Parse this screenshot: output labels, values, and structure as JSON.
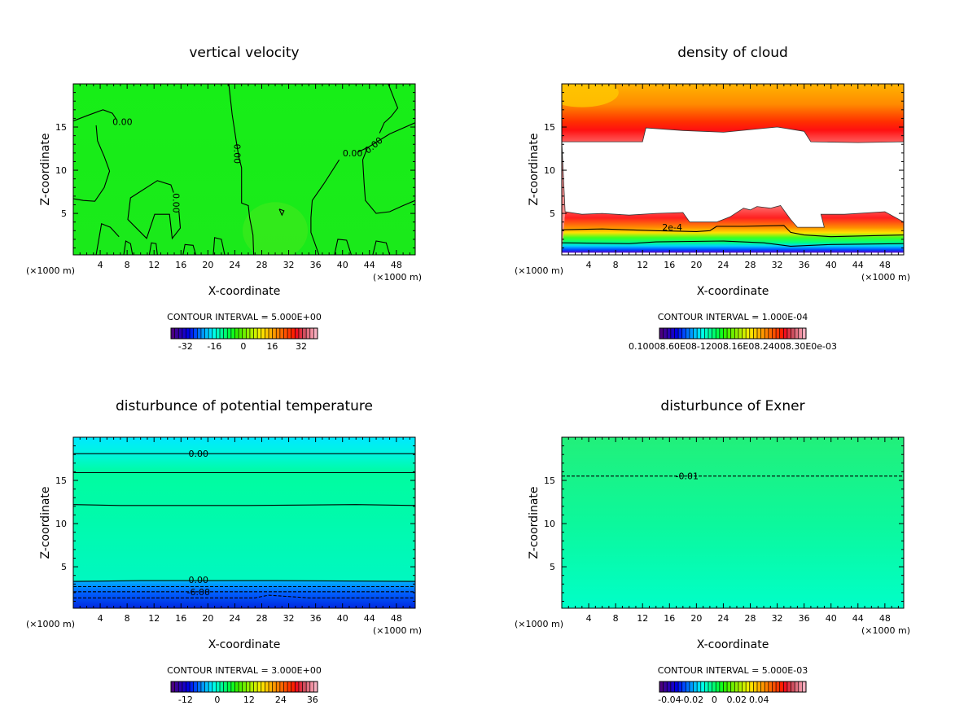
{
  "chart_data": [
    {
      "type": "heatmap",
      "title": "vertical velocity",
      "xlabel": "X-coordinate",
      "ylabel": "Z-coordinate",
      "x_unit_left": "(×1000 m)",
      "x_unit_right": "(×1000 m)",
      "xlim": [
        0,
        50.8
      ],
      "ylim": [
        0.2,
        20
      ],
      "xticks": [
        4,
        8,
        12,
        16,
        20,
        24,
        28,
        32,
        36,
        40,
        44,
        48
      ],
      "yticks": [
        5,
        10,
        15
      ],
      "contour_interval": "CONTOUR INTERVAL = 5.000E+00",
      "colorbar": {
        "range": [
          -40,
          41
        ],
        "labels": [
          "-32",
          "-16",
          "0",
          "16",
          "32"
        ],
        "values": [
          -32,
          -16,
          0,
          16,
          32
        ]
      },
      "background": {
        "bands": [
          [
            20,
            "#17ee17"
          ],
          [
            0.2,
            "#1aea1a"
          ]
        ]
      },
      "contours": [
        {
          "value": "0.00",
          "label_at": [
            7.3,
            15.6
          ],
          "dashed": false,
          "points": [
            [
              0,
              15.7
            ],
            [
              2,
              16.3
            ],
            [
              4.4,
              17.0
            ],
            [
              5.8,
              16.6
            ],
            [
              6.4,
              15.9
            ]
          ]
        },
        {
          "value": "",
          "dashed": false,
          "points": [
            [
              3.4,
              15.2
            ],
            [
              3.6,
              13.4
            ],
            [
              4.6,
              11.6
            ],
            [
              5.4,
              9.9
            ],
            [
              4.6,
              8.0
            ],
            [
              3.2,
              6.4
            ],
            [
              1.5,
              6.5
            ],
            [
              0,
              6.7
            ]
          ]
        },
        {
          "value": "0.00",
          "label_at": [
            24.4,
            11.9
          ],
          "label_rot": 90,
          "dashed": false,
          "points": [
            [
              23.1,
              20
            ],
            [
              23.6,
              16.5
            ],
            [
              24.2,
              13.4
            ],
            [
              24.6,
              11.5
            ],
            [
              25,
              10.3
            ],
            [
              25,
              6.2
            ],
            [
              26,
              5.9
            ],
            [
              26.2,
              4.5
            ],
            [
              26.7,
              2.5
            ],
            [
              26.8,
              0.2
            ]
          ]
        },
        {
          "value": "0.00",
          "label_at": [
            41.5,
            12.0
          ],
          "dashed": false,
          "points": [
            [
              50.8,
              15.5
            ],
            [
              47,
              14.2
            ],
            [
              43.9,
              12.7
            ],
            [
              42.3,
              12.1
            ]
          ]
        },
        {
          "value": "",
          "dashed": false,
          "points": [
            [
              39.5,
              11.2
            ],
            [
              37.2,
              8.4
            ],
            [
              35.5,
              6.5
            ],
            [
              35.3,
              4.5
            ],
            [
              35.3,
              2.8
            ],
            [
              36.5,
              0.2
            ]
          ]
        },
        {
          "value": "0.00",
          "label_at": [
            44.6,
            12.9
          ],
          "label_rot": -40,
          "dashed": false,
          "points": [
            [
              46.8,
              20
            ],
            [
              48.2,
              17.2
            ],
            [
              47.2,
              16.2
            ],
            [
              46.2,
              15.5
            ],
            [
              45.5,
              14.3
            ]
          ]
        },
        {
          "value": "",
          "dashed": false,
          "points": [
            [
              43.7,
              12.6
            ],
            [
              43,
              11.2
            ],
            [
              43.2,
              8.5
            ],
            [
              43.4,
              6.5
            ],
            [
              45,
              5
            ],
            [
              47,
              5.2
            ],
            [
              49,
              5.9
            ],
            [
              50.8,
              6.5
            ]
          ]
        },
        {
          "value": "0.00",
          "label_at": [
            15.3,
            6.2
          ],
          "label_rot": 90,
          "dashed": false,
          "points": [
            [
              15.7,
              5.2
            ],
            [
              15.9,
              3.3
            ],
            [
              14.7,
              2.1
            ],
            [
              14.3,
              4.9
            ],
            [
              12.1,
              4.9
            ],
            [
              10.9,
              2.1
            ],
            [
              8.1,
              4.3
            ],
            [
              8.5,
              6.8
            ],
            [
              12.5,
              8.8
            ],
            [
              14.5,
              8.3
            ],
            [
              14.9,
              7.4
            ]
          ]
        },
        {
          "value": "",
          "dashed": false,
          "points": [
            [
              3.4,
              0.2
            ],
            [
              4.2,
              3.8
            ],
            [
              5.5,
              3.4
            ],
            [
              6.8,
              2.3
            ]
          ]
        },
        {
          "value": "",
          "dashed": false,
          "points": [
            [
              7.5,
              0.2
            ],
            [
              7.8,
              1.8
            ],
            [
              8.5,
              1.5
            ],
            [
              8.8,
              0.2
            ]
          ]
        },
        {
          "value": "",
          "dashed": false,
          "points": [
            [
              20.8,
              0.2
            ],
            [
              21,
              2.2
            ],
            [
              22,
              2.0
            ],
            [
              22.5,
              0.2
            ]
          ]
        },
        {
          "value": "",
          "dashed": false,
          "points": [
            [
              16.3,
              0.2
            ],
            [
              16.6,
              1.4
            ],
            [
              17.8,
              1.3
            ],
            [
              18.2,
              0.2
            ]
          ]
        },
        {
          "value": "",
          "dashed": false,
          "points": [
            [
              38.8,
              0.2
            ],
            [
              39.3,
              2.0
            ],
            [
              40.6,
              1.9
            ],
            [
              41.3,
              0.2
            ]
          ]
        },
        {
          "value": "",
          "dashed": false,
          "points": [
            [
              44.5,
              0.2
            ],
            [
              45,
              1.8
            ],
            [
              46.5,
              1.6
            ],
            [
              47,
              0.2
            ]
          ]
        },
        {
          "value": "",
          "dashed": false,
          "points": [
            [
              30.6,
              5.5
            ],
            [
              31,
              4.8
            ],
            [
              31.3,
              5.3
            ],
            [
              30.6,
              5.5
            ]
          ]
        },
        {
          "value": "",
          "dashed": false,
          "points": [
            [
              11.3,
              0.2
            ],
            [
              11.6,
              1.6
            ],
            [
              12.3,
              1.5
            ],
            [
              12.5,
              0.2
            ]
          ]
        }
      ]
    },
    {
      "type": "heatmap",
      "title": "density of cloud",
      "xlabel": "X-coordinate",
      "ylabel": "Z-coordinate",
      "x_unit_left": "(×1000 m)",
      "x_unit_right": "(×1000 m)",
      "xlim": [
        0,
        50.8
      ],
      "ylim": [
        0.2,
        20
      ],
      "xticks": [
        4,
        8,
        12,
        16,
        20,
        24,
        28,
        32,
        36,
        40,
        44,
        48
      ],
      "yticks": [
        5,
        10,
        15
      ],
      "contour_interval": "CONTOUR INTERVAL = 1.000E-04",
      "colorbar": {
        "range": [
          0,
          1
        ],
        "labels": [
          "0.10008.60E08-12008.16E08.24008.30E0e-03"
        ],
        "values": [
          0.5
        ]
      },
      "cloud_upper_boundary": [
        [
          0,
          13.3
        ],
        [
          12,
          13.3
        ],
        [
          12.5,
          14.9
        ],
        [
          18,
          14.6
        ],
        [
          24,
          14.4
        ],
        [
          32,
          15.0
        ],
        [
          36,
          14.5
        ],
        [
          37,
          13.3
        ],
        [
          44,
          13.2
        ],
        [
          50.8,
          13.3
        ]
      ],
      "cloud_lower_boundary": [
        [
          0.5,
          5.2
        ],
        [
          3,
          4.9
        ],
        [
          6,
          5.0
        ],
        [
          10,
          4.8
        ],
        [
          14,
          5.0
        ],
        [
          18,
          5.1
        ],
        [
          19,
          4.0
        ],
        [
          23,
          4.0
        ],
        [
          25,
          4.6
        ],
        [
          27,
          5.6
        ],
        [
          28,
          5.4
        ],
        [
          29,
          5.8
        ],
        [
          31,
          5.6
        ],
        [
          32.5,
          5.9
        ],
        [
          34,
          4.3
        ],
        [
          35,
          3.4
        ],
        [
          39,
          3.4
        ],
        [
          38.5,
          4.9
        ],
        [
          42,
          4.9
        ],
        [
          48,
          5.2
        ],
        [
          50.8,
          4.0
        ]
      ],
      "contours": [
        {
          "value": "2e-4",
          "label_at": [
            16.4,
            3.4
          ],
          "dashed": false,
          "points": [
            [
              0,
              3.1
            ],
            [
              6,
              3.2
            ],
            [
              14,
              3.0
            ],
            [
              20,
              2.9
            ],
            [
              22,
              3.0
            ],
            [
              23,
              3.5
            ],
            [
              27,
              3.5
            ],
            [
              33,
              3.6
            ],
            [
              34,
              2.8
            ],
            [
              36,
              2.5
            ],
            [
              40,
              2.3
            ],
            [
              50.8,
              2.5
            ]
          ]
        },
        {
          "value": "",
          "dashed": false,
          "points": [
            [
              0,
              1.6
            ],
            [
              10,
              1.5
            ],
            [
              14,
              1.7
            ],
            [
              24,
              1.8
            ],
            [
              30,
              1.6
            ],
            [
              34,
              1.2
            ],
            [
              40,
              1.4
            ],
            [
              50.8,
              1.5
            ]
          ]
        }
      ]
    },
    {
      "type": "heatmap",
      "title": "disturbunce of potential temperature",
      "xlabel": "X-coordinate",
      "ylabel": "Z-coordinate",
      "x_unit_left": "(×1000 m)",
      "x_unit_right": "(×1000 m)",
      "xlim": [
        0,
        50.8
      ],
      "ylim": [
        0.2,
        20
      ],
      "xticks": [
        4,
        8,
        12,
        16,
        20,
        24,
        28,
        32,
        36,
        40,
        44,
        48
      ],
      "yticks": [
        5,
        10,
        15
      ],
      "contour_interval": "CONTOUR INTERVAL = 3.000E+00",
      "colorbar": {
        "range": [
          -17.5,
          37.9
        ],
        "labels": [
          "-12",
          "0",
          "12",
          "24",
          "36"
        ],
        "values": [
          -12,
          0,
          12,
          24,
          36
        ]
      },
      "background": {
        "bands": [
          [
            20,
            "#00e8ff"
          ],
          [
            18.1,
            "#00f5e0"
          ],
          [
            15.9,
            "#00fca0"
          ],
          [
            12.1,
            "#00fba8"
          ],
          [
            3.4,
            "#00f8c0"
          ],
          [
            3.3,
            "#00b0ff"
          ],
          [
            2.0,
            "#0060ff"
          ],
          [
            0.2,
            "#0028e0"
          ]
        ]
      },
      "contours": [
        {
          "value": "0.00",
          "label_at": [
            18.6,
            18.1
          ],
          "dashed": false,
          "points": [
            [
              0,
              18.1
            ],
            [
              50.8,
              18.1
            ]
          ]
        },
        {
          "value": "",
          "dashed": false,
          "points": [
            [
              0,
              15.9
            ],
            [
              50.8,
              15.9
            ]
          ]
        },
        {
          "value": "",
          "dashed": false,
          "points": [
            [
              0,
              12.2
            ],
            [
              7,
              12.1
            ],
            [
              26,
              12.1
            ],
            [
              42,
              12.2
            ],
            [
              50.8,
              12.1
            ]
          ]
        },
        {
          "value": "0.00",
          "label_at": [
            18.6,
            3.5
          ],
          "dashed": false,
          "points": [
            [
              0,
              3.3
            ],
            [
              10,
              3.4
            ],
            [
              30,
              3.4
            ],
            [
              50.8,
              3.3
            ]
          ]
        },
        {
          "value": "",
          "dashed": true,
          "points": [
            [
              0,
              2.7
            ],
            [
              50.8,
              2.7
            ]
          ]
        },
        {
          "value": "-6.00",
          "label_at": [
            18.6,
            2.1
          ],
          "dashed": true,
          "points": [
            [
              0,
              2.1
            ],
            [
              50.8,
              2.1
            ]
          ]
        },
        {
          "value": "",
          "dashed": true,
          "points": [
            [
              0,
              1.4
            ],
            [
              27,
              1.4
            ],
            [
              29,
              1.7
            ],
            [
              33,
              1.5
            ],
            [
              35,
              1.4
            ],
            [
              50.8,
              1.4
            ]
          ]
        }
      ]
    },
    {
      "type": "heatmap",
      "title": "disturbunce of Exner",
      "xlabel": "X-coordinate",
      "ylabel": "Z-coordinate",
      "x_unit_left": "(×1000 m)",
      "x_unit_right": "(×1000 m)",
      "xlim": [
        0,
        50.8
      ],
      "ylim": [
        0.2,
        20
      ],
      "xticks": [
        4,
        8,
        12,
        16,
        20,
        24,
        28,
        32,
        36,
        40,
        44,
        48
      ],
      "yticks": [
        5,
        10,
        15
      ],
      "contour_interval": "CONTOUR INTERVAL = 5.000E-03",
      "colorbar": {
        "range": [
          -0.049,
          0.082
        ],
        "labels": [
          "-0.04",
          "-0.02",
          "0",
          "0.02",
          "0.04"
        ],
        "values": [
          -0.04,
          -0.02,
          0,
          0.02,
          0.04
        ]
      },
      "background": {
        "bands": [
          [
            20,
            "#22f07a"
          ],
          [
            10,
            "#0cf89c"
          ],
          [
            0.2,
            "#00ffc8"
          ]
        ]
      },
      "contours": [
        {
          "value": "-0.01",
          "label_at": [
            18.6,
            15.5
          ],
          "dashed": true,
          "points": [
            [
              0,
              15.5
            ],
            [
              50.8,
              15.5
            ]
          ]
        }
      ]
    }
  ]
}
